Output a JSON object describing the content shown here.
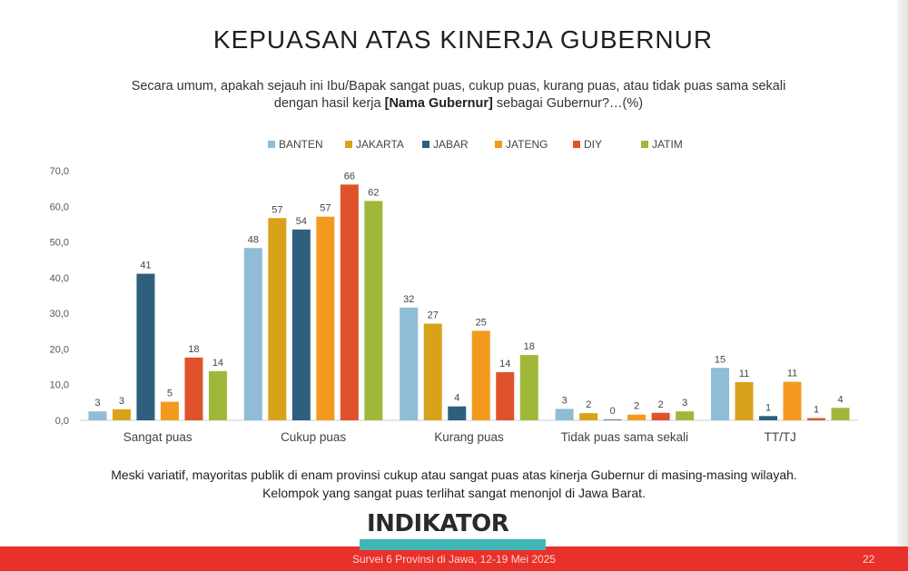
{
  "slide": {
    "title": "KEPUASAN ATAS KINERJA GUBERNUR",
    "question_part1": "Secara umum, apakah sejauh ini Ibu/Bapak sangat puas, cukup puas, kurang puas, atau tidak puas sama sekali dengan hasil kerja ",
    "question_bold": "[Nama Gubernur]",
    "question_part2": " sebagai Gubernur?…(%)",
    "note_line1": "Meski variatif, mayoritas publik di enam provinsi cukup atau sangat puas atas kinerja Gubernur di masing-masing wilayah.",
    "note_line2": "Kelompok yang sangat puas terlihat sangat menonjol di Jawa Barat.",
    "logo_text": "INDIKATOR",
    "footer_text": "Survei 6 Provinsi di Jawa, 12-19 Mei 2025",
    "page_number": "22"
  },
  "chart_data": {
    "type": "bar",
    "categories": [
      "Sangat puas",
      "Cukup puas",
      "Kurang puas",
      "Tidak puas sama sekali",
      "TT/TJ"
    ],
    "series": [
      {
        "name": "BANTEN",
        "color": "#8fbcd6",
        "values": [
          2.5,
          48.3,
          31.6,
          3.2,
          14.7
        ],
        "labels": [
          "3",
          "48",
          "32",
          "3",
          "15"
        ]
      },
      {
        "name": "JAKARTA",
        "color": "#d9a21b",
        "values": [
          3.1,
          56.7,
          27.1,
          2.0,
          10.7
        ],
        "labels": [
          "3",
          "57",
          "27",
          "2",
          "11"
        ]
      },
      {
        "name": "JABAR",
        "color": "#2f5f7f",
        "values": [
          41.1,
          53.5,
          3.9,
          0.2,
          1.2
        ],
        "labels": [
          "41",
          "54",
          "4",
          "0",
          "1"
        ]
      },
      {
        "name": "JATENG",
        "color": "#f39a1e",
        "values": [
          5.2,
          57.1,
          25.1,
          1.6,
          10.8
        ],
        "labels": [
          "5",
          "57",
          "25",
          "2",
          "11"
        ]
      },
      {
        "name": "DIY",
        "color": "#e0522b",
        "values": [
          17.6,
          66.1,
          13.5,
          2.1,
          0.6
        ],
        "labels": [
          "18",
          "66",
          "14",
          "2",
          "1"
        ]
      },
      {
        "name": "JATIM",
        "color": "#9fb83a",
        "values": [
          13.8,
          61.5,
          18.3,
          2.5,
          3.5
        ],
        "labels": [
          "14",
          "62",
          "18",
          "3",
          "4"
        ]
      }
    ],
    "ylim": [
      0,
      70
    ],
    "yticks": [
      "0,0",
      "10,0",
      "20,0",
      "30,0",
      "40,0",
      "50,0",
      "60,0",
      "70,0"
    ],
    "legend_position": "top-center",
    "grid": false
  }
}
